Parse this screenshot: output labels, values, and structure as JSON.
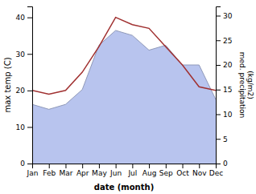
{
  "chart_data": {
    "type": "line",
    "xlabel": "date (month)",
    "ylabel": "max temp (C)",
    "y2label": "med. precipitation\n(kg/m2)",
    "categories": [
      "Jan",
      "Feb",
      "Mar",
      "Apr",
      "May",
      "Jun",
      "Jul",
      "Aug",
      "Sep",
      "Oct",
      "Nov",
      "Dec"
    ],
    "series": [
      {
        "type": "line",
        "color": "#a03030",
        "values": [
          20,
          19,
          20,
          25,
          32,
          40,
          38,
          37,
          32,
          27,
          21,
          20
        ]
      },
      {
        "type": "area",
        "axis": "y2",
        "color": "#b8c4ee",
        "values": [
          12,
          11,
          12,
          15,
          24,
          27,
          26,
          23,
          24,
          20,
          20,
          13
        ]
      }
    ],
    "ylim": [
      0,
      43
    ],
    "yticks": [
      0,
      10,
      20,
      30,
      40
    ],
    "y2lim": [
      0,
      31.875
    ],
    "y2ticks": [
      0,
      5,
      10,
      15,
      20,
      25,
      30
    ],
    "grid": false
  }
}
